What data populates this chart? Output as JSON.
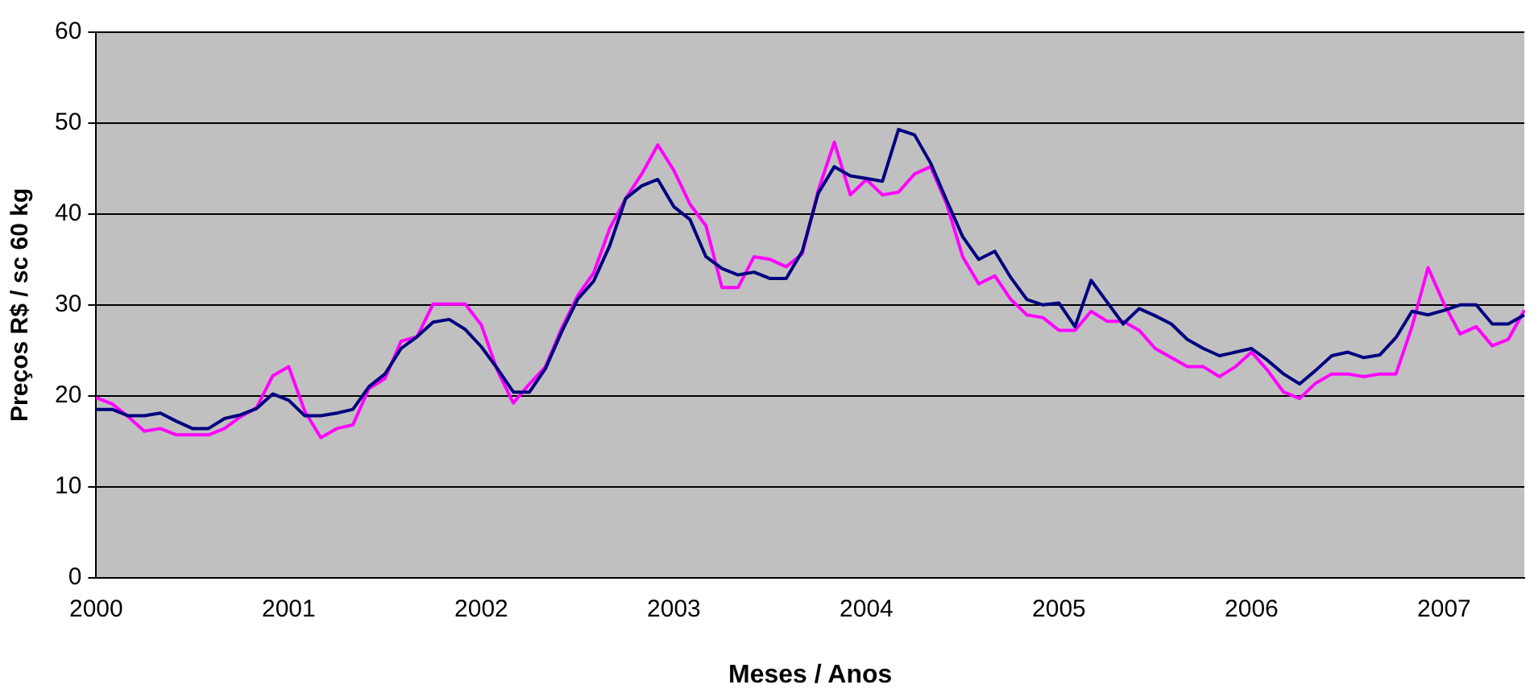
{
  "chart_data": {
    "type": "line",
    "xlabel": "Meses / Anos",
    "ylabel": "Preços R$ / sc 60 kg",
    "categories": [
      "2000",
      null,
      null,
      null,
      null,
      null,
      null,
      null,
      null,
      null,
      null,
      null,
      "2001",
      null,
      null,
      null,
      null,
      null,
      null,
      null,
      null,
      null,
      null,
      null,
      "2002",
      null,
      null,
      null,
      null,
      null,
      null,
      null,
      null,
      null,
      null,
      null,
      "2003",
      null,
      null,
      null,
      null,
      null,
      null,
      null,
      null,
      null,
      null,
      null,
      "2004",
      null,
      null,
      null,
      null,
      null,
      null,
      null,
      null,
      null,
      null,
      null,
      "2005",
      null,
      null,
      null,
      null,
      null,
      null,
      null,
      null,
      null,
      null,
      null,
      "2006",
      null,
      null,
      null,
      null,
      null,
      null,
      null,
      null,
      null,
      null,
      null,
      "2007",
      null,
      null,
      null,
      null,
      null
    ],
    "series": [
      {
        "color": "#000080",
        "values": [
          18.5,
          18.5,
          17.8,
          17.8,
          18.1,
          17.2,
          16.4,
          16.4,
          17.5,
          17.9,
          18.6,
          20.2,
          19.5,
          17.8,
          17.8,
          18.1,
          18.5,
          21.0,
          22.4,
          25.2,
          26.5,
          28.1,
          28.4,
          27.3,
          25.4,
          23.0,
          20.4,
          20.4,
          23.0,
          27.0,
          30.6,
          32.6,
          36.5,
          41.7,
          43.1,
          43.8,
          40.8,
          39.4,
          35.3,
          34.0,
          33.3,
          33.6,
          32.9,
          32.9,
          35.9,
          42.3,
          45.2,
          44.2,
          43.9,
          43.6,
          49.3,
          48.7,
          45.6,
          41.5,
          37.5,
          35.0,
          35.9,
          33.0,
          30.6,
          30.0,
          30.2,
          27.6,
          32.7,
          30.3,
          27.9,
          29.6,
          28.8,
          27.9,
          26.2,
          25.2,
          24.4,
          24.8,
          25.2,
          23.9,
          22.4,
          21.3,
          22.8,
          24.4,
          24.8,
          24.2,
          24.5,
          26.4,
          29.3,
          28.9,
          29.4,
          30.0,
          30.0,
          27.9,
          27.9,
          28.9
        ]
      },
      {
        "color": "#ff00ff",
        "values": [
          19.8,
          19.1,
          17.7,
          16.1,
          16.4,
          15.7,
          15.7,
          15.7,
          16.4,
          17.7,
          18.7,
          22.2,
          23.2,
          18.3,
          15.4,
          16.4,
          16.8,
          20.8,
          21.9,
          26.0,
          26.5,
          30.1,
          30.1,
          30.1,
          27.8,
          22.8,
          19.2,
          21.3,
          23.2,
          27.4,
          31.0,
          33.5,
          38.4,
          41.7,
          44.4,
          47.6,
          44.8,
          41.1,
          38.7,
          31.9,
          31.9,
          35.3,
          35.0,
          34.2,
          35.6,
          42.6,
          47.9,
          42.1,
          43.8,
          42.1,
          42.4,
          44.4,
          45.2,
          41.1,
          35.3,
          32.3,
          33.2,
          30.6,
          28.9,
          28.6,
          27.2,
          27.2,
          29.3,
          28.2,
          28.2,
          27.2,
          25.2,
          24.2,
          23.2,
          23.2,
          22.1,
          23.2,
          24.8,
          22.8,
          20.4,
          19.7,
          21.4,
          22.4,
          22.4,
          22.1,
          22.4,
          22.4,
          27.6,
          34.1,
          30.1,
          26.8,
          27.6,
          25.5,
          26.2,
          29.4
        ]
      }
    ],
    "ylim": [
      0,
      60
    ],
    "yticks": [
      0,
      10,
      20,
      30,
      40,
      50,
      60
    ],
    "grid": "y"
  }
}
